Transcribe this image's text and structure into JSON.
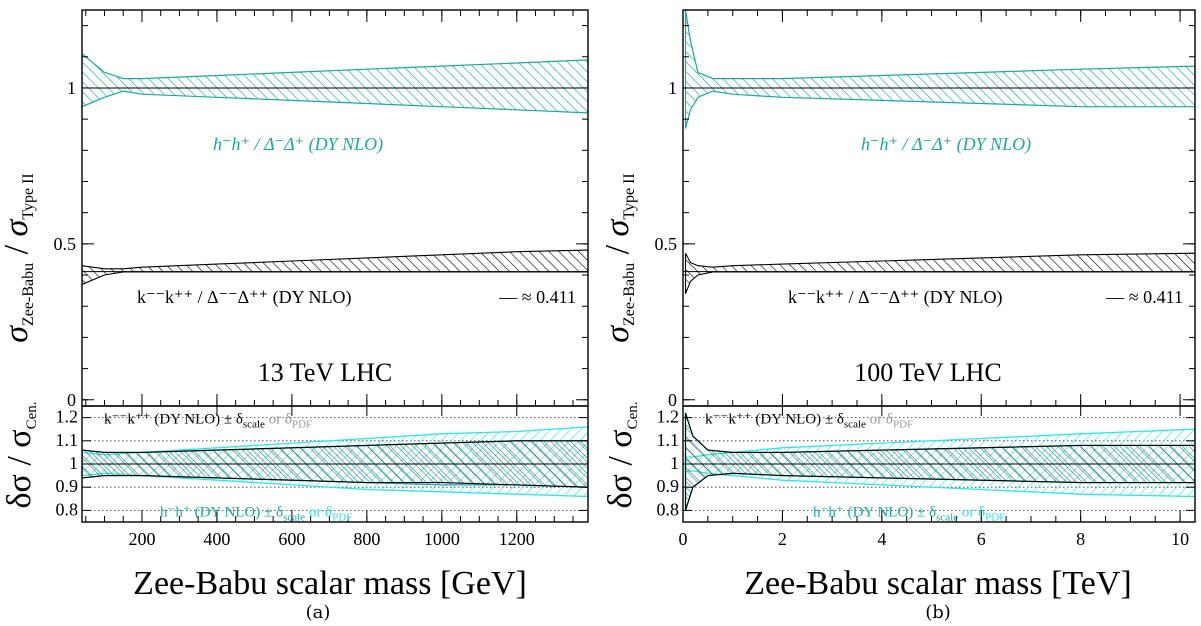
{
  "figure": {
    "panels": [
      {
        "caption": "(a)",
        "energy_label": "13 TeV LHC",
        "xlabel": "Zee-Babu scalar mass [GeV]",
        "ylabel_top": "σ_Zee-Babu / σ_Type II",
        "ylabel_bottom": "δσ / σ_Cen.",
        "xlim": [
          40,
          1390
        ],
        "xticks": [
          "200",
          "400",
          "600",
          "800",
          "1000",
          "1200"
        ],
        "xtick_values": [
          200,
          400,
          600,
          800,
          1000,
          1200
        ],
        "ylim_top": [
          -0.02,
          1.25
        ],
        "yticks_top": [
          "0",
          "0.5",
          "1"
        ],
        "ylim_bottom": [
          0.75,
          1.25
        ],
        "yticks_bottom": [
          "0.8",
          "0.9",
          "1",
          "1.1",
          "1.2"
        ],
        "reference_value": "— ≈ 0.411",
        "ann_h": "h⁻h⁺ /  Δ⁻Δ⁺ (DY NLO)",
        "ann_k": "k⁻⁻k⁺⁺ /  Δ⁻⁻Δ⁺⁺ (DY NLO)",
        "ann_k_ratio": "k⁻⁻k⁺⁺ (DY NLO) ± δ",
        "ann_h_ratio": "h⁻h⁺ (DY NLO) ± δ"
      },
      {
        "caption": "(b)",
        "energy_label": "100 TeV LHC",
        "xlabel": "Zee-Babu scalar mass [TeV]",
        "ylabel_top": "σ_Zee-Babu / σ_Type II",
        "ylabel_bottom": "δσ / σ_Cen.",
        "xlim": [
          0,
          10.3
        ],
        "xticks": [
          "0",
          "2",
          "4",
          "6",
          "8",
          "10"
        ],
        "xtick_values": [
          0,
          2,
          4,
          6,
          8,
          10
        ],
        "ylim_top": [
          -0.02,
          1.25
        ],
        "yticks_top": [
          "0",
          "0.5",
          "1"
        ],
        "ylim_bottom": [
          0.75,
          1.25
        ],
        "yticks_bottom": [
          "0.8",
          "0.9",
          "1",
          "1.1",
          "1.2"
        ],
        "reference_value": "— ≈ 0.411",
        "ann_h": "h⁻h⁺ /  Δ⁻Δ⁺ (DY NLO)",
        "ann_k": "k⁻⁻k⁺⁺ /  Δ⁻⁻Δ⁺⁺ (DY NLO)",
        "ann_k_ratio": "k⁻⁻k⁺⁺ (DY NLO) ± δ",
        "ann_h_ratio": "h⁻h⁺ (DY NLO) ± δ"
      }
    ],
    "subscripts": {
      "scale": "scale",
      "pdf": "PDF",
      "or": "or δ"
    },
    "colors": {
      "h_band": "#1aa8a0",
      "k_band": "#000000",
      "pdf_band": "#2ee6e6",
      "grey_text": "#999999"
    }
  },
  "chart_data": [
    {
      "type": "area",
      "panel": "(a) 13 TeV LHC",
      "xlabel": "Zee-Babu scalar mass [GeV]",
      "ylabel": "σ_Zee-Babu / σ_Type II",
      "xlim": [
        40,
        1390
      ],
      "ylim": [
        -0.02,
        1.25
      ],
      "series": [
        {
          "name": "h⁻h⁺ / Δ⁻Δ⁺ (DY NLO)",
          "x": [
            40,
            100,
            150,
            200,
            400,
            600,
            800,
            1000,
            1200,
            1390
          ],
          "upper": [
            1.11,
            1.05,
            1.03,
            1.03,
            1.04,
            1.05,
            1.06,
            1.07,
            1.08,
            1.09
          ],
          "lower": [
            0.94,
            0.97,
            0.99,
            0.98,
            0.97,
            0.96,
            0.95,
            0.94,
            0.93,
            0.92
          ]
        },
        {
          "name": "k⁻⁻k⁺⁺ / Δ⁻⁻Δ⁺⁺ (DY NLO)",
          "x": [
            40,
            100,
            150,
            200,
            400,
            600,
            800,
            1000,
            1200,
            1390
          ],
          "upper": [
            0.43,
            0.42,
            0.42,
            0.425,
            0.435,
            0.445,
            0.455,
            0.465,
            0.475,
            0.48
          ],
          "lower": [
            0.37,
            0.4,
            0.41,
            0.41,
            0.41,
            0.41,
            0.41,
            0.41,
            0.41,
            0.41
          ]
        }
      ],
      "reference_line": 0.411,
      "ratio_panel": {
        "ylim": [
          0.75,
          1.25
        ],
        "x": [
          40,
          100,
          200,
          400,
          600,
          800,
          1000,
          1200,
          1390
        ],
        "k_scale": {
          "upper": [
            1.06,
            1.05,
            1.05,
            1.06,
            1.07,
            1.08,
            1.09,
            1.1,
            1.1
          ],
          "lower": [
            0.94,
            0.95,
            0.95,
            0.94,
            0.93,
            0.92,
            0.92,
            0.91,
            0.9
          ]
        },
        "h_scale": {
          "upper": [
            1.06,
            1.05,
            1.05,
            1.06,
            1.07,
            1.08,
            1.09,
            1.1,
            1.1
          ],
          "lower": [
            0.94,
            0.95,
            0.95,
            0.94,
            0.93,
            0.92,
            0.91,
            0.91,
            0.9
          ]
        },
        "pdf": {
          "upper": [
            1.05,
            1.04,
            1.05,
            1.07,
            1.09,
            1.11,
            1.13,
            1.14,
            1.16
          ],
          "lower": [
            0.95,
            0.96,
            0.95,
            0.93,
            0.91,
            0.89,
            0.88,
            0.87,
            0.86
          ]
        }
      }
    },
    {
      "type": "area",
      "panel": "(b) 100 TeV LHC",
      "xlabel": "Zee-Babu scalar mass [TeV]",
      "ylabel": "σ_Zee-Babu / σ_Type II",
      "xlim": [
        0,
        10.3
      ],
      "ylim": [
        -0.02,
        1.25
      ],
      "series": [
        {
          "name": "h⁻h⁺ / Δ⁻Δ⁺ (DY NLO)",
          "x": [
            0.05,
            0.15,
            0.3,
            0.6,
            1,
            2,
            4,
            6,
            8,
            10.3
          ],
          "upper": [
            1.25,
            1.15,
            1.05,
            1.03,
            1.03,
            1.03,
            1.04,
            1.05,
            1.06,
            1.07
          ],
          "lower": [
            0.87,
            0.93,
            0.97,
            0.99,
            0.98,
            0.97,
            0.96,
            0.95,
            0.94,
            0.94
          ]
        },
        {
          "name": "k⁻⁻k⁺⁺ / Δ⁻⁻Δ⁺⁺ (DY NLO)",
          "x": [
            0.05,
            0.15,
            0.3,
            0.6,
            1,
            2,
            4,
            6,
            8,
            10.3
          ],
          "upper": [
            0.47,
            0.44,
            0.43,
            0.425,
            0.43,
            0.435,
            0.445,
            0.455,
            0.465,
            0.47
          ],
          "lower": [
            0.34,
            0.38,
            0.4,
            0.41,
            0.41,
            0.41,
            0.41,
            0.41,
            0.41,
            0.41
          ]
        }
      ],
      "reference_line": 0.411,
      "ratio_panel": {
        "ylim": [
          0.75,
          1.25
        ],
        "x": [
          0.05,
          0.2,
          0.5,
          1,
          2,
          4,
          6,
          8,
          10.3
        ],
        "k_scale": {
          "upper": [
            1.22,
            1.12,
            1.06,
            1.05,
            1.05,
            1.06,
            1.07,
            1.08,
            1.08
          ],
          "lower": [
            0.8,
            0.9,
            0.95,
            0.96,
            0.95,
            0.94,
            0.93,
            0.92,
            0.92
          ]
        },
        "h_scale": {
          "upper": [
            1.22,
            1.12,
            1.06,
            1.05,
            1.05,
            1.06,
            1.07,
            1.08,
            1.08
          ],
          "lower": [
            0.8,
            0.9,
            0.95,
            0.96,
            0.95,
            0.94,
            0.93,
            0.92,
            0.92
          ]
        },
        "pdf": {
          "upper": [
            1.03,
            1.03,
            1.04,
            1.05,
            1.07,
            1.09,
            1.11,
            1.13,
            1.15
          ],
          "lower": [
            0.97,
            0.97,
            0.96,
            0.95,
            0.93,
            0.91,
            0.89,
            0.87,
            0.86
          ]
        }
      }
    }
  ]
}
